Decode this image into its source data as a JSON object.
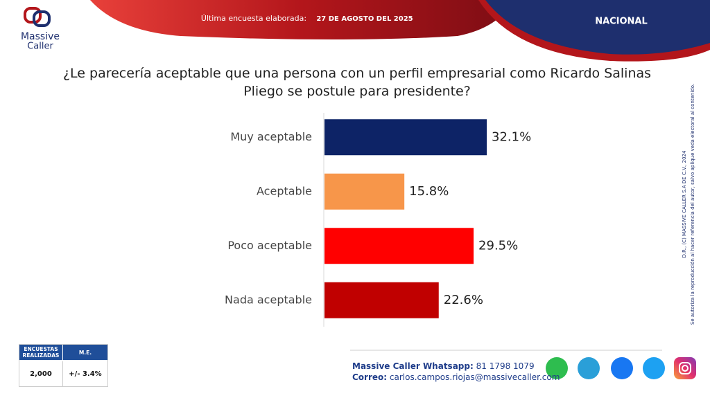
{
  "header": {
    "survey_label": "Última encuesta elaborada:",
    "survey_date": "27 DE AGOSTO DEL 2025",
    "scope": "NACIONAL"
  },
  "logo": {
    "line1": "Massive",
    "line2": "Caller"
  },
  "chart_data": {
    "type": "bar",
    "orientation": "horizontal",
    "title": "¿Le parecería aceptable que una persona con un perfil empresarial como Ricardo Salinas Pliego se postule para presidente?",
    "categories": [
      "Muy aceptable",
      "Aceptable",
      "Poco aceptable",
      "Nada aceptable"
    ],
    "values": [
      32.1,
      15.8,
      29.5,
      22.6
    ],
    "value_labels": [
      "32.1%",
      "15.8%",
      "29.5%",
      "22.6%"
    ],
    "colors": [
      "#0d2366",
      "#f7964a",
      "#ff0000",
      "#c00000"
    ]
  },
  "disclaimer": {
    "line1": "D.R., (C) MASSIVE CALLER S.A DE C.V., 2024",
    "line2": "Se autoriza la reproducción al hacer referencia del autor, salvo aplique veda electoral al contenido."
  },
  "stats_table": {
    "headers": [
      "ENCUESTAS REALIZADAS",
      "M.E."
    ],
    "values": [
      "2,000",
      "+/- 3.4%"
    ]
  },
  "contact": {
    "whatsapp_label": "Massive Caller Whatsapp:",
    "whatsapp": "81 1798 1079",
    "email_label": "Correo:",
    "email": "carlos.campos.riojas@massivecaller.com"
  }
}
